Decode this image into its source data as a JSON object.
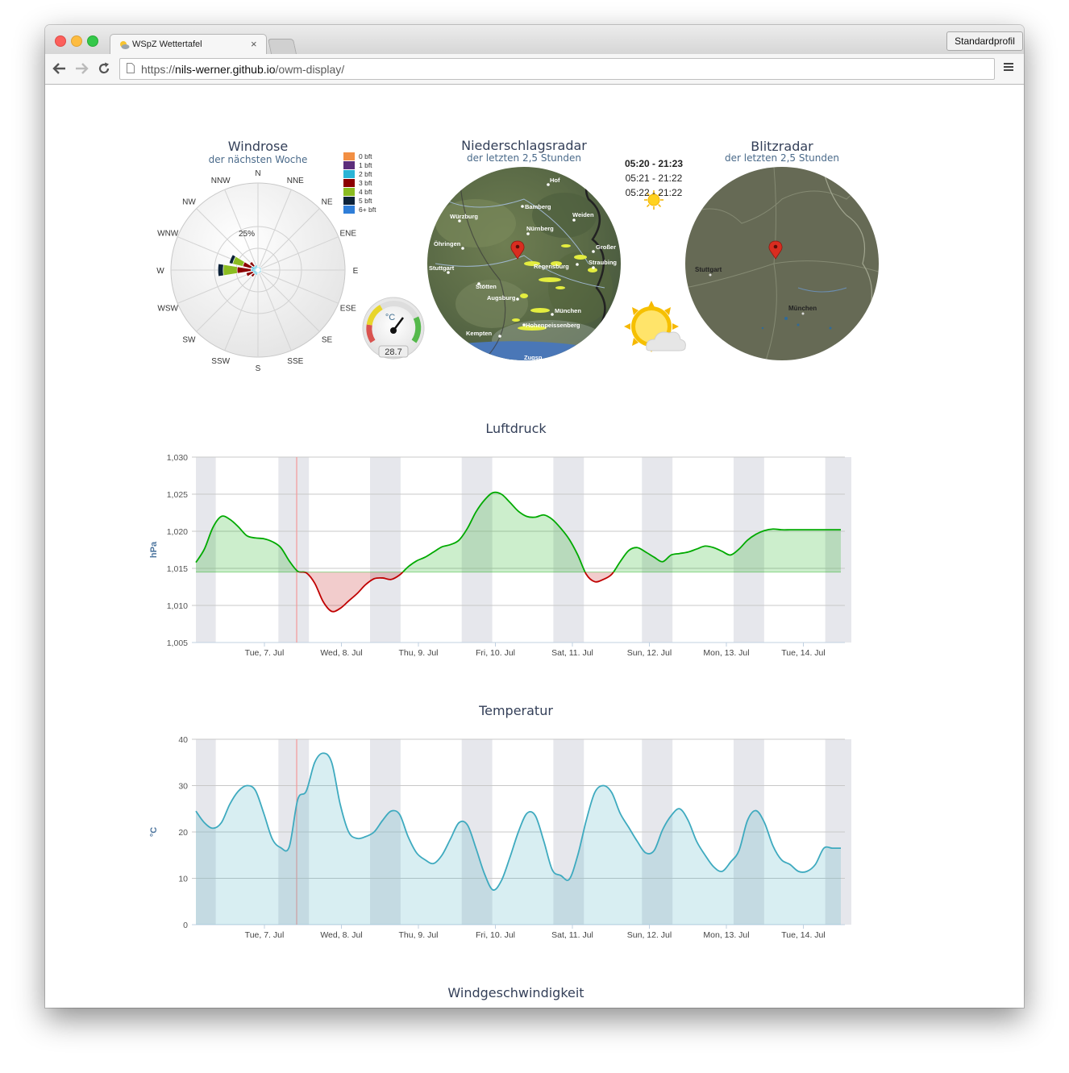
{
  "browser": {
    "tab_title": "WSpZ Wettertafel",
    "tab_close": "×",
    "profile_button": "Standardprofil",
    "url_prefix": "https://",
    "url_host": "nils-werner.github.io",
    "url_path": "/owm-display/"
  },
  "windrose": {
    "title": "Windrose",
    "subtitle": "der nächsten Woche",
    "directions": [
      "N",
      "NNE",
      "NE",
      "ENE",
      "E",
      "ESE",
      "SE",
      "SSE",
      "S",
      "SSW",
      "SW",
      "WSW",
      "W",
      "WNW",
      "NW",
      "NNW"
    ],
    "ring_label": "25%",
    "legend": [
      {
        "label": "0 bft",
        "color": "#f28f43"
      },
      {
        "label": "1 bft",
        "color": "#5c2d7a"
      },
      {
        "label": "2 bft",
        "color": "#2bb4d6"
      },
      {
        "label": "3 bft",
        "color": "#8b0000"
      },
      {
        "label": "4 bft",
        "color": "#8bbc21"
      },
      {
        "label": "5 bft",
        "color": "#0d233a"
      },
      {
        "label": "6+ bft",
        "color": "#2f7ed8"
      }
    ]
  },
  "gauge": {
    "unit": "°C",
    "value": "28.7"
  },
  "radar": {
    "title": "Niederschlagsradar",
    "subtitle": "der letzten 2,5 Stunden",
    "cities": [
      "Hof",
      "Bamberg",
      "Würzburg",
      "Weiden",
      "Nürnberg",
      "Öhringen",
      "Großer",
      "Regensburg",
      "Straubing",
      "Stuttgart",
      "Stötten",
      "Augsburg",
      "München",
      "Hohenpeissenberg",
      "Kempten",
      "Zugsp"
    ]
  },
  "sun": {
    "times": [
      "05:20 - 21:23",
      "05:21 - 21:22",
      "05:22 - 21:22"
    ]
  },
  "lightning": {
    "title": "Blitzradar",
    "subtitle": "der letzten 2,5 Stunden",
    "cities": [
      "Stuttgart",
      "München"
    ]
  },
  "pressure_chart": {
    "title": "Luftdruck",
    "ylabel": "hPa",
    "chart_data": {
      "type": "area",
      "threshold": 1014.5,
      "ylim": [
        1005,
        1030
      ],
      "yticks": [
        "1,030",
        "1,025",
        "1,020",
        "1,015",
        "1,010",
        "1,005"
      ],
      "x": [
        0,
        2,
        4,
        6,
        8,
        10,
        12,
        14,
        16,
        18,
        20,
        22,
        24,
        26,
        28,
        30,
        32,
        34,
        36,
        38,
        40,
        42,
        44,
        46,
        48,
        50,
        52,
        54,
        56,
        58,
        60,
        62,
        64,
        66,
        68,
        70,
        72,
        74,
        76,
        78,
        80,
        82,
        84,
        86,
        88,
        90,
        92,
        94,
        96,
        98,
        100,
        102,
        104,
        106,
        108,
        110,
        112,
        114,
        116,
        118,
        120,
        122,
        124,
        126,
        128,
        130,
        132,
        134,
        136,
        138,
        140,
        142,
        144,
        146,
        148,
        150,
        152
      ],
      "values": [
        1015.8,
        1017.6,
        1020.5,
        1022.0,
        1021.6,
        1020.6,
        1019.4,
        1019.1,
        1019.0,
        1018.6,
        1017.8,
        1016.0,
        1014.6,
        1014.4,
        1013.0,
        1010.5,
        1009.2,
        1009.6,
        1010.6,
        1011.6,
        1012.8,
        1013.6,
        1013.7,
        1013.5,
        1014.1,
        1015.2,
        1016.0,
        1016.5,
        1017.2,
        1017.9,
        1018.2,
        1018.8,
        1020.4,
        1022.6,
        1024.2,
        1025.2,
        1025.0,
        1023.9,
        1022.7,
        1022.0,
        1021.9,
        1022.2,
        1021.6,
        1020.4,
        1018.9,
        1016.8,
        1014.2,
        1013.2,
        1013.5,
        1014.2,
        1015.9,
        1017.4,
        1017.8,
        1017.2,
        1016.5,
        1015.9,
        1016.8,
        1017.0,
        1017.2,
        1017.6,
        1018.0,
        1017.8,
        1017.3,
        1016.8,
        1017.6,
        1018.8,
        1019.6,
        1020.1,
        1020.3,
        1020.2,
        1020.2,
        1020.2,
        1020.2,
        1020.2,
        1020.2,
        1020.2,
        1020.2
      ],
      "categories": [
        "Tue, 7. Jul",
        "Wed, 8. Jul",
        "Thu, 9. Jul",
        "Fri, 10. Jul",
        "Sat, 11. Jul",
        "Sun, 12. Jul",
        "Mon, 13. Jul",
        "Tue, 14. Jul"
      ],
      "colors": {
        "above": "#00aa00",
        "below": "#c00000"
      }
    }
  },
  "temperature_chart": {
    "title": "Temperatur",
    "ylabel": "°C",
    "chart_data": {
      "type": "area",
      "ylim": [
        0,
        40
      ],
      "yticks": [
        "40",
        "30",
        "20",
        "10",
        "0"
      ],
      "x": [
        0,
        2,
        4,
        6,
        8,
        10,
        12,
        14,
        16,
        18,
        20,
        22,
        24,
        26,
        28,
        30,
        32,
        34,
        36,
        38,
        40,
        42,
        44,
        46,
        48,
        50,
        52,
        54,
        56,
        58,
        60,
        62,
        64,
        66,
        68,
        70,
        72,
        74,
        76,
        78,
        80,
        82,
        84,
        86,
        88,
        90,
        92,
        94,
        96,
        98,
        100,
        102,
        104,
        106,
        108,
        110,
        112,
        114,
        116,
        118,
        120,
        122,
        124,
        126,
        128,
        130,
        132,
        134,
        136,
        138,
        140,
        142,
        144,
        146,
        148,
        150,
        152
      ],
      "values": [
        24.5,
        22.0,
        20.8,
        22.0,
        26.0,
        28.8,
        30.0,
        29.0,
        24.0,
        18.5,
        16.6,
        16.8,
        27.0,
        28.8,
        35.0,
        37.0,
        35.0,
        26.0,
        20.0,
        18.6,
        19.0,
        20.0,
        22.5,
        24.5,
        23.8,
        19.0,
        15.5,
        14.0,
        13.2,
        15.0,
        18.5,
        22.0,
        21.5,
        16.5,
        11.0,
        7.5,
        9.5,
        14.5,
        20.0,
        24.0,
        23.5,
        18.0,
        11.8,
        10.6,
        9.8,
        15.0,
        22.5,
        28.5,
        30.0,
        28.5,
        24.0,
        21.0,
        18.0,
        15.5,
        16.0,
        20.5,
        23.5,
        25.0,
        22.5,
        18.0,
        15.0,
        12.5,
        11.5,
        13.5,
        16.0,
        22.5,
        24.6,
        22.0,
        17.0,
        14.0,
        13.0,
        11.5,
        11.5,
        13.0,
        16.5,
        16.5,
        16.5
      ],
      "categories": [
        "Tue, 7. Jul",
        "Wed, 8. Jul",
        "Thu, 9. Jul",
        "Fri, 10. Jul",
        "Sat, 11. Jul",
        "Sun, 12. Jul",
        "Mon, 13. Jul",
        "Tue, 14. Jul"
      ],
      "colors": {
        "line": "#3eaabf",
        "fill": "#d6ecf1"
      }
    }
  },
  "wind_chart": {
    "title": "Windgeschwindigkeit"
  }
}
